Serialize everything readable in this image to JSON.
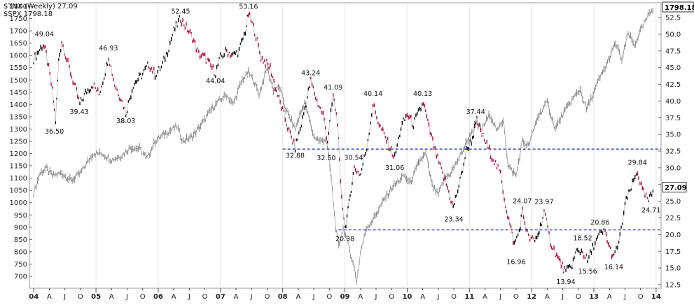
{
  "colors": {
    "tnx_up": "#000000",
    "tnx_down": "#cc0033",
    "spx": "#888888",
    "support": "#1a2bb5",
    "grid": "#e6e6e6",
    "axis": "#222222"
  },
  "chart_data": {
    "type": "line",
    "legend": [
      {
        "name": "$TNX (Weekly) 27.09"
      },
      {
        "name": "$SPX 1798.18"
      }
    ],
    "right_axis_ticks": [
      "52.5",
      "50.0",
      "47.5",
      "45.0",
      "42.5",
      "40.0",
      "37.5",
      "35.0",
      "32.5",
      "30.0",
      "27.5",
      "25.0",
      "22.5",
      "20.0",
      "17.5",
      "15.0",
      "12.5"
    ],
    "left_axis_ticks": [
      "1800",
      "1750",
      "1700",
      "1650",
      "1600",
      "1550",
      "1500",
      "1450",
      "1400",
      "1350",
      "1300",
      "1250",
      "1200",
      "1150",
      "1100",
      "1050",
      "1000",
      "950",
      "900",
      "850",
      "800",
      "750",
      "700"
    ],
    "x_ticks": [
      "04",
      "A",
      "J",
      "O",
      "05",
      "A",
      "J",
      "O",
      "06",
      "A",
      "J",
      "O",
      "07",
      "A",
      "J",
      "O",
      "08",
      "A",
      "J",
      "O",
      "09",
      "A",
      "J",
      "O",
      "10",
      "A",
      "J",
      "O",
      "11",
      "A",
      "J",
      "O",
      "12",
      "A",
      "J",
      "O",
      "13",
      "A",
      "J",
      "O",
      "14"
    ],
    "last_value_labels": {
      "spx": "1798.18",
      "tnx": "27.09"
    },
    "horizontal_lines": [
      {
        "tnx": 32.8
      },
      {
        "tnx": 20.7
      }
    ],
    "annotations": [
      {
        "text": "49.04",
        "x": 2004.17,
        "y": 49.04
      },
      {
        "text": "36.50",
        "x": 2004.33,
        "y": 36.5
      },
      {
        "text": "39.43",
        "x": 2004.73,
        "y": 39.43
      },
      {
        "text": "46.93",
        "x": 2005.2,
        "y": 46.93
      },
      {
        "text": "38.03",
        "x": 2005.48,
        "y": 38.03
      },
      {
        "text": "52.45",
        "x": 2006.36,
        "y": 52.45
      },
      {
        "text": "44.04",
        "x": 2006.92,
        "y": 44.04
      },
      {
        "text": "53.16",
        "x": 2007.45,
        "y": 53.16
      },
      {
        "text": "43.24",
        "x": 2008.45,
        "y": 43.24
      },
      {
        "text": "32.88",
        "x": 2008.2,
        "y": 32.88
      },
      {
        "text": "41.09",
        "x": 2008.81,
        "y": 41.09
      },
      {
        "text": "32.50",
        "x": 2008.7,
        "y": 32.5
      },
      {
        "text": "30.54",
        "x": 2009.14,
        "y": 30.54
      },
      {
        "text": "20.38",
        "x": 2009.0,
        "y": 20.38
      },
      {
        "text": "40.14",
        "x": 2009.45,
        "y": 40.14
      },
      {
        "text": "31.06",
        "x": 2009.8,
        "y": 31.06
      },
      {
        "text": "40.13",
        "x": 2010.25,
        "y": 40.13
      },
      {
        "text": "23.34",
        "x": 2010.75,
        "y": 23.34
      },
      {
        "text": "37.44",
        "x": 2011.1,
        "y": 37.44
      },
      {
        "text": "24.07",
        "x": 2011.85,
        "y": 24.07
      },
      {
        "text": "16.96",
        "x": 2011.75,
        "y": 16.96
      },
      {
        "text": "23.97",
        "x": 2012.2,
        "y": 23.97
      },
      {
        "text": "13.94",
        "x": 2012.55,
        "y": 13.94
      },
      {
        "text": "18.52",
        "x": 2012.82,
        "y": 18.52
      },
      {
        "text": "15.56",
        "x": 2012.9,
        "y": 15.56
      },
      {
        "text": "20.86",
        "x": 2013.1,
        "y": 20.86
      },
      {
        "text": "16.14",
        "x": 2013.32,
        "y": 16.14
      },
      {
        "text": "29.84",
        "x": 2013.7,
        "y": 29.84
      },
      {
        "text": "24.71",
        "x": 2013.92,
        "y": 24.71
      }
    ],
    "series": [
      {
        "name": "$TNX",
        "axis": "right",
        "points": [
          [
            2004.0,
            46.3
          ],
          [
            2004.15,
            48.5
          ],
          [
            2004.2,
            47.0
          ],
          [
            2004.3,
            41.5
          ],
          [
            2004.35,
            37.0
          ],
          [
            2004.4,
            46.0
          ],
          [
            2004.45,
            49.0
          ],
          [
            2004.55,
            45.5
          ],
          [
            2004.65,
            42.5
          ],
          [
            2004.74,
            39.5
          ],
          [
            2004.85,
            41.5
          ],
          [
            2004.95,
            42.5
          ],
          [
            2005.05,
            41.0
          ],
          [
            2005.15,
            44.5
          ],
          [
            2005.2,
            46.8
          ],
          [
            2005.3,
            42.5
          ],
          [
            2005.4,
            40.5
          ],
          [
            2005.48,
            38.2
          ],
          [
            2005.6,
            42.5
          ],
          [
            2005.75,
            44.0
          ],
          [
            2005.85,
            45.5
          ],
          [
            2005.95,
            44.0
          ],
          [
            2006.05,
            45.0
          ],
          [
            2006.15,
            47.5
          ],
          [
            2006.25,
            50.5
          ],
          [
            2006.36,
            52.4
          ],
          [
            2006.45,
            51.0
          ],
          [
            2006.55,
            49.5
          ],
          [
            2006.65,
            47.0
          ],
          [
            2006.75,
            46.5
          ],
          [
            2006.92,
            44.2
          ],
          [
            2007.0,
            46.5
          ],
          [
            2007.1,
            47.5
          ],
          [
            2007.2,
            46.8
          ],
          [
            2007.3,
            47.5
          ],
          [
            2007.4,
            50.5
          ],
          [
            2007.45,
            53.0
          ],
          [
            2007.55,
            50.5
          ],
          [
            2007.65,
            46.5
          ],
          [
            2007.8,
            45.0
          ],
          [
            2007.9,
            41.5
          ],
          [
            2008.0,
            38.5
          ],
          [
            2008.1,
            35.5
          ],
          [
            2008.2,
            33.0
          ],
          [
            2008.3,
            36.5
          ],
          [
            2008.45,
            43.0
          ],
          [
            2008.55,
            40.0
          ],
          [
            2008.65,
            38.0
          ],
          [
            2008.72,
            34.0
          ],
          [
            2008.81,
            40.8
          ],
          [
            2008.88,
            37.0
          ],
          [
            2008.93,
            27.5
          ],
          [
            2009.0,
            21.0
          ],
          [
            2009.05,
            23.5
          ],
          [
            2009.1,
            27.0
          ],
          [
            2009.15,
            30.0
          ],
          [
            2009.25,
            29.0
          ],
          [
            2009.35,
            33.0
          ],
          [
            2009.45,
            39.5
          ],
          [
            2009.55,
            36.5
          ],
          [
            2009.65,
            34.5
          ],
          [
            2009.8,
            31.5
          ],
          [
            2009.9,
            36.0
          ],
          [
            2010.0,
            38.0
          ],
          [
            2010.1,
            36.5
          ],
          [
            2010.2,
            38.5
          ],
          [
            2010.26,
            39.8
          ],
          [
            2010.35,
            36.0
          ],
          [
            2010.45,
            32.5
          ],
          [
            2010.55,
            29.5
          ],
          [
            2010.65,
            27.0
          ],
          [
            2010.74,
            24.0
          ],
          [
            2010.85,
            28.0
          ],
          [
            2010.95,
            32.5
          ],
          [
            2011.05,
            34.5
          ],
          [
            2011.12,
            37.0
          ],
          [
            2011.2,
            35.0
          ],
          [
            2011.3,
            33.0
          ],
          [
            2011.4,
            31.0
          ],
          [
            2011.5,
            29.0
          ],
          [
            2011.58,
            24.5
          ],
          [
            2011.65,
            21.5
          ],
          [
            2011.72,
            18.5
          ],
          [
            2011.8,
            20.5
          ],
          [
            2011.85,
            23.5
          ],
          [
            2011.95,
            19.5
          ],
          [
            2012.05,
            19.0
          ],
          [
            2012.12,
            20.5
          ],
          [
            2012.2,
            23.5
          ],
          [
            2012.3,
            19.0
          ],
          [
            2012.42,
            16.5
          ],
          [
            2012.55,
            14.3
          ],
          [
            2012.65,
            15.5
          ],
          [
            2012.72,
            17.5
          ],
          [
            2012.82,
            17.5
          ],
          [
            2012.9,
            16.0
          ],
          [
            2013.0,
            18.5
          ],
          [
            2013.1,
            20.0
          ],
          [
            2013.18,
            20.5
          ],
          [
            2013.25,
            18.0
          ],
          [
            2013.32,
            16.5
          ],
          [
            2013.42,
            19.5
          ],
          [
            2013.5,
            24.5
          ],
          [
            2013.58,
            26.5
          ],
          [
            2013.66,
            28.5
          ],
          [
            2013.7,
            29.5
          ],
          [
            2013.78,
            26.5
          ],
          [
            2013.88,
            25.0
          ],
          [
            2013.93,
            26.0
          ],
          [
            2013.97,
            27.09
          ]
        ]
      },
      {
        "name": "$SPX",
        "axis": "left",
        "points": [
          [
            2004.0,
            1040
          ],
          [
            2004.1,
            1120
          ],
          [
            2004.2,
            1140
          ],
          [
            2004.3,
            1110
          ],
          [
            2004.45,
            1120
          ],
          [
            2004.6,
            1090
          ],
          [
            2004.75,
            1120
          ],
          [
            2004.95,
            1200
          ],
          [
            2005.1,
            1200
          ],
          [
            2005.25,
            1175
          ],
          [
            2005.4,
            1190
          ],
          [
            2005.55,
            1225
          ],
          [
            2005.7,
            1220
          ],
          [
            2005.82,
            1180
          ],
          [
            2005.95,
            1250
          ],
          [
            2006.1,
            1280
          ],
          [
            2006.3,
            1310
          ],
          [
            2006.4,
            1250
          ],
          [
            2006.55,
            1270
          ],
          [
            2006.7,
            1320
          ],
          [
            2006.85,
            1380
          ],
          [
            2006.98,
            1415
          ],
          [
            2007.1,
            1440
          ],
          [
            2007.2,
            1400
          ],
          [
            2007.35,
            1500
          ],
          [
            2007.45,
            1530
          ],
          [
            2007.55,
            1490
          ],
          [
            2007.62,
            1440
          ],
          [
            2007.75,
            1550
          ],
          [
            2007.85,
            1460
          ],
          [
            2007.95,
            1470
          ],
          [
            2008.05,
            1380
          ],
          [
            2008.2,
            1300
          ],
          [
            2008.35,
            1410
          ],
          [
            2008.5,
            1270
          ],
          [
            2008.6,
            1250
          ],
          [
            2008.7,
            1260
          ],
          [
            2008.78,
            1100
          ],
          [
            2008.85,
            900
          ],
          [
            2008.9,
            820
          ],
          [
            2008.97,
            900
          ],
          [
            2009.05,
            830
          ],
          [
            2009.15,
            735
          ],
          [
            2009.19,
            680
          ],
          [
            2009.25,
            800
          ],
          [
            2009.35,
            900
          ],
          [
            2009.45,
            930
          ],
          [
            2009.6,
            1000
          ],
          [
            2009.75,
            1060
          ],
          [
            2009.95,
            1110
          ],
          [
            2010.05,
            1080
          ],
          [
            2010.2,
            1170
          ],
          [
            2010.3,
            1200
          ],
          [
            2010.4,
            1070
          ],
          [
            2010.5,
            1030
          ],
          [
            2010.6,
            1100
          ],
          [
            2010.7,
            1120
          ],
          [
            2010.85,
            1190
          ],
          [
            2010.98,
            1260
          ],
          [
            2011.1,
            1320
          ],
          [
            2011.2,
            1300
          ],
          [
            2011.33,
            1360
          ],
          [
            2011.45,
            1290
          ],
          [
            2011.55,
            1340
          ],
          [
            2011.62,
            1150
          ],
          [
            2011.75,
            1110
          ],
          [
            2011.85,
            1250
          ],
          [
            2011.95,
            1230
          ],
          [
            2012.1,
            1350
          ],
          [
            2012.25,
            1410
          ],
          [
            2012.38,
            1300
          ],
          [
            2012.5,
            1360
          ],
          [
            2012.65,
            1420
          ],
          [
            2012.78,
            1460
          ],
          [
            2012.88,
            1380
          ],
          [
            2012.97,
            1430
          ],
          [
            2013.08,
            1500
          ],
          [
            2013.2,
            1560
          ],
          [
            2013.35,
            1650
          ],
          [
            2013.45,
            1580
          ],
          [
            2013.55,
            1690
          ],
          [
            2013.65,
            1640
          ],
          [
            2013.75,
            1700
          ],
          [
            2013.85,
            1750
          ],
          [
            2013.97,
            1798
          ]
        ]
      }
    ]
  }
}
